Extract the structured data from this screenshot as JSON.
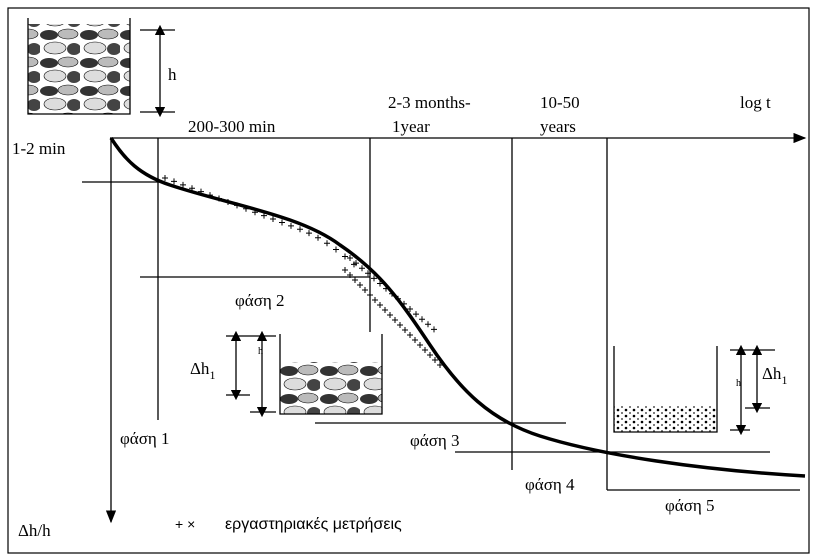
{
  "labels": {
    "h_top": "h",
    "t1": "1-2 min",
    "t2": "200-300 min",
    "t3a": "2-3 months-",
    "t3b": "1year",
    "t4a": "10-50",
    "t4b": "years",
    "logt": "log t",
    "phase1": "φάση 1",
    "phase2": "φάση 2",
    "phase3": "φάση 3",
    "phase4": "φάση 4",
    "phase5": "φάση 5",
    "dh_left": {
      "main": "Δh",
      "sub": "1"
    },
    "h_left": "h",
    "dh_right": {
      "main": "Δh",
      "sub": "1"
    },
    "h_right": "h",
    "yaxis": "Δh/h",
    "legend_marker": "+ ×",
    "legend_text": "εργαστηριακές μετρήσεις"
  }
}
